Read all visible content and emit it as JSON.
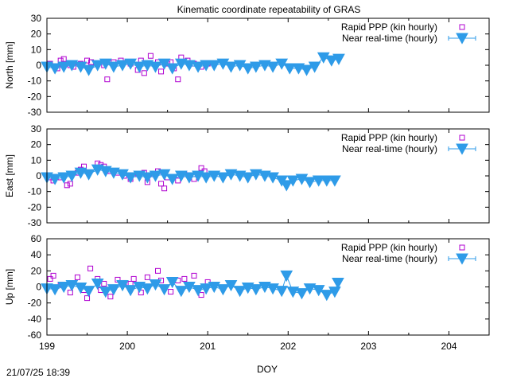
{
  "title": "Kinematic coordinate repeatability of GRAS",
  "timestamp": "21/07/25 18:39",
  "colors": {
    "ppp": "#b000d0",
    "nrt": "#2e9be8",
    "axis": "#000000"
  },
  "chart_data": {
    "type": "scatter",
    "title": "Kinematic coordinate repeatability of GRAS",
    "xlabel": "DOY",
    "xlim": [
      199,
      204.5
    ],
    "xticks": [
      199,
      200,
      201,
      202,
      203,
      204
    ],
    "legend_position": "top-right",
    "series_names": [
      "Rapid PPP (kin hourly)",
      "Near real-time (hourly)"
    ],
    "panels": [
      {
        "ylabel": "North [mm]",
        "ylim": [
          -30,
          30
        ],
        "yticks": [
          -30,
          -20,
          -10,
          0,
          10,
          20,
          30
        ],
        "series": [
          {
            "name": "Rapid PPP (kin hourly)",
            "marker": "square",
            "x": [
              199.04,
              199.13,
              199.17,
              199.21,
              199.29,
              199.33,
              199.42,
              199.5,
              199.55,
              199.63,
              199.71,
              199.75,
              199.83,
              199.92,
              200.0,
              200.04,
              200.13,
              200.17,
              200.21,
              200.29,
              200.38,
              200.42,
              200.5,
              200.54,
              200.58,
              200.63,
              200.67,
              200.75,
              200.83,
              200.92,
              201.0
            ],
            "y": [
              1,
              -2,
              3,
              4,
              0,
              -1,
              1,
              3,
              2,
              1,
              0,
              -9,
              2,
              3,
              2,
              1,
              -3,
              3,
              -5,
              6,
              2,
              -4,
              1,
              2,
              -2,
              -9,
              5,
              3,
              1,
              -1,
              1
            ]
          },
          {
            "name": "Near real-time (hourly)",
            "marker": "triangle-down",
            "x": [
              199.0,
              199.1,
              199.21,
              199.31,
              199.42,
              199.52,
              199.63,
              199.73,
              199.83,
              199.94,
              200.04,
              200.15,
              200.25,
              200.35,
              200.46,
              200.56,
              200.67,
              200.77,
              200.88,
              200.98,
              201.08,
              201.19,
              201.29,
              201.4,
              201.5,
              201.6,
              201.71,
              201.81,
              201.92,
              202.02,
              202.13,
              202.23,
              202.33,
              202.44,
              202.54,
              202.63
            ],
            "y": [
              -1,
              -2,
              -1,
              0,
              -1,
              -3,
              0,
              1,
              -1,
              0,
              1,
              -1,
              0,
              -1,
              1,
              -2,
              1,
              0,
              -1,
              0,
              0,
              1,
              -1,
              0,
              -2,
              -1,
              0,
              -1,
              1,
              -2,
              -2,
              -3,
              -1,
              5,
              3,
              4
            ]
          }
        ]
      },
      {
        "ylabel": "East [mm]",
        "ylim": [
          -30,
          30
        ],
        "yticks": [
          -30,
          -20,
          -10,
          0,
          10,
          20,
          30
        ],
        "series": [
          {
            "name": "Rapid PPP (kin hourly)",
            "marker": "square",
            "x": [
              199.04,
              199.08,
              199.17,
              199.25,
              199.29,
              199.38,
              199.42,
              199.46,
              199.63,
              199.67,
              199.71,
              199.79,
              199.88,
              199.96,
              200.04,
              200.13,
              200.21,
              200.25,
              200.33,
              200.38,
              200.42,
              200.46,
              200.5,
              200.63,
              200.71,
              200.83,
              200.92,
              200.96
            ],
            "y": [
              -1,
              -3,
              -1,
              -6,
              -5,
              2,
              4,
              6,
              8,
              7,
              6,
              3,
              2,
              0,
              -2,
              1,
              2,
              -4,
              1,
              3,
              -5,
              -8,
              -1,
              -3,
              1,
              -2,
              5,
              3
            ]
          },
          {
            "name": "Near real-time (hourly)",
            "marker": "triangle-down",
            "x": [
              199.0,
              199.1,
              199.21,
              199.31,
              199.42,
              199.52,
              199.63,
              199.73,
              199.83,
              199.94,
              200.04,
              200.15,
              200.25,
              200.35,
              200.46,
              200.56,
              200.67,
              200.77,
              200.88,
              200.98,
              201.08,
              201.19,
              201.29,
              201.4,
              201.5,
              201.6,
              201.71,
              201.81,
              201.92,
              201.98,
              202.06,
              202.17,
              202.27,
              202.38,
              202.48,
              202.58
            ],
            "y": [
              -1,
              -2,
              -1,
              0,
              2,
              1,
              4,
              3,
              2,
              1,
              -1,
              0,
              -1,
              0,
              1,
              -2,
              0,
              -1,
              0,
              -1,
              0,
              -1,
              1,
              0,
              -1,
              1,
              0,
              -1,
              -3,
              -6,
              -3,
              -2,
              -4,
              -3,
              -3,
              -3
            ]
          }
        ]
      },
      {
        "ylabel": "Up [mm]",
        "ylim": [
          -60,
          60
        ],
        "yticks": [
          -60,
          -40,
          -20,
          0,
          20,
          40,
          60
        ],
        "series": [
          {
            "name": "Rapid PPP (kin hourly)",
            "marker": "square",
            "x": [
              199.04,
              199.08,
              199.17,
              199.29,
              199.38,
              199.46,
              199.5,
              199.54,
              199.63,
              199.67,
              199.71,
              199.79,
              199.88,
              199.96,
              200.04,
              200.08,
              200.17,
              200.25,
              200.38,
              200.42,
              200.54,
              200.63,
              200.71,
              200.83,
              200.92,
              201.0
            ],
            "y": [
              10,
              14,
              3,
              -7,
              12,
              -4,
              -14,
              23,
              10,
              -4,
              4,
              -12,
              9,
              5,
              4,
              10,
              -7,
              12,
              20,
              8,
              -6,
              8,
              10,
              14,
              -10,
              6
            ]
          },
          {
            "name": "Near real-time (hourly)",
            "marker": "triangle-down",
            "x": [
              199.0,
              199.1,
              199.21,
              199.31,
              199.42,
              199.52,
              199.63,
              199.73,
              199.83,
              199.94,
              200.04,
              200.15,
              200.25,
              200.35,
              200.46,
              200.56,
              200.67,
              200.77,
              200.88,
              200.98,
              201.08,
              201.19,
              201.29,
              201.4,
              201.5,
              201.6,
              201.71,
              201.81,
              201.92,
              201.98,
              202.06,
              202.17,
              202.27,
              202.38,
              202.48,
              202.58,
              202.62
            ],
            "y": [
              -2,
              -3,
              0,
              2,
              -1,
              -5,
              4,
              -6,
              -3,
              2,
              -4,
              0,
              -2,
              3,
              -3,
              6,
              -5,
              0,
              -4,
              -2,
              0,
              -3,
              2,
              -5,
              -1,
              -3,
              0,
              -2,
              -5,
              14,
              -6,
              -8,
              -2,
              -4,
              -10,
              -6,
              5
            ]
          }
        ]
      }
    ]
  }
}
